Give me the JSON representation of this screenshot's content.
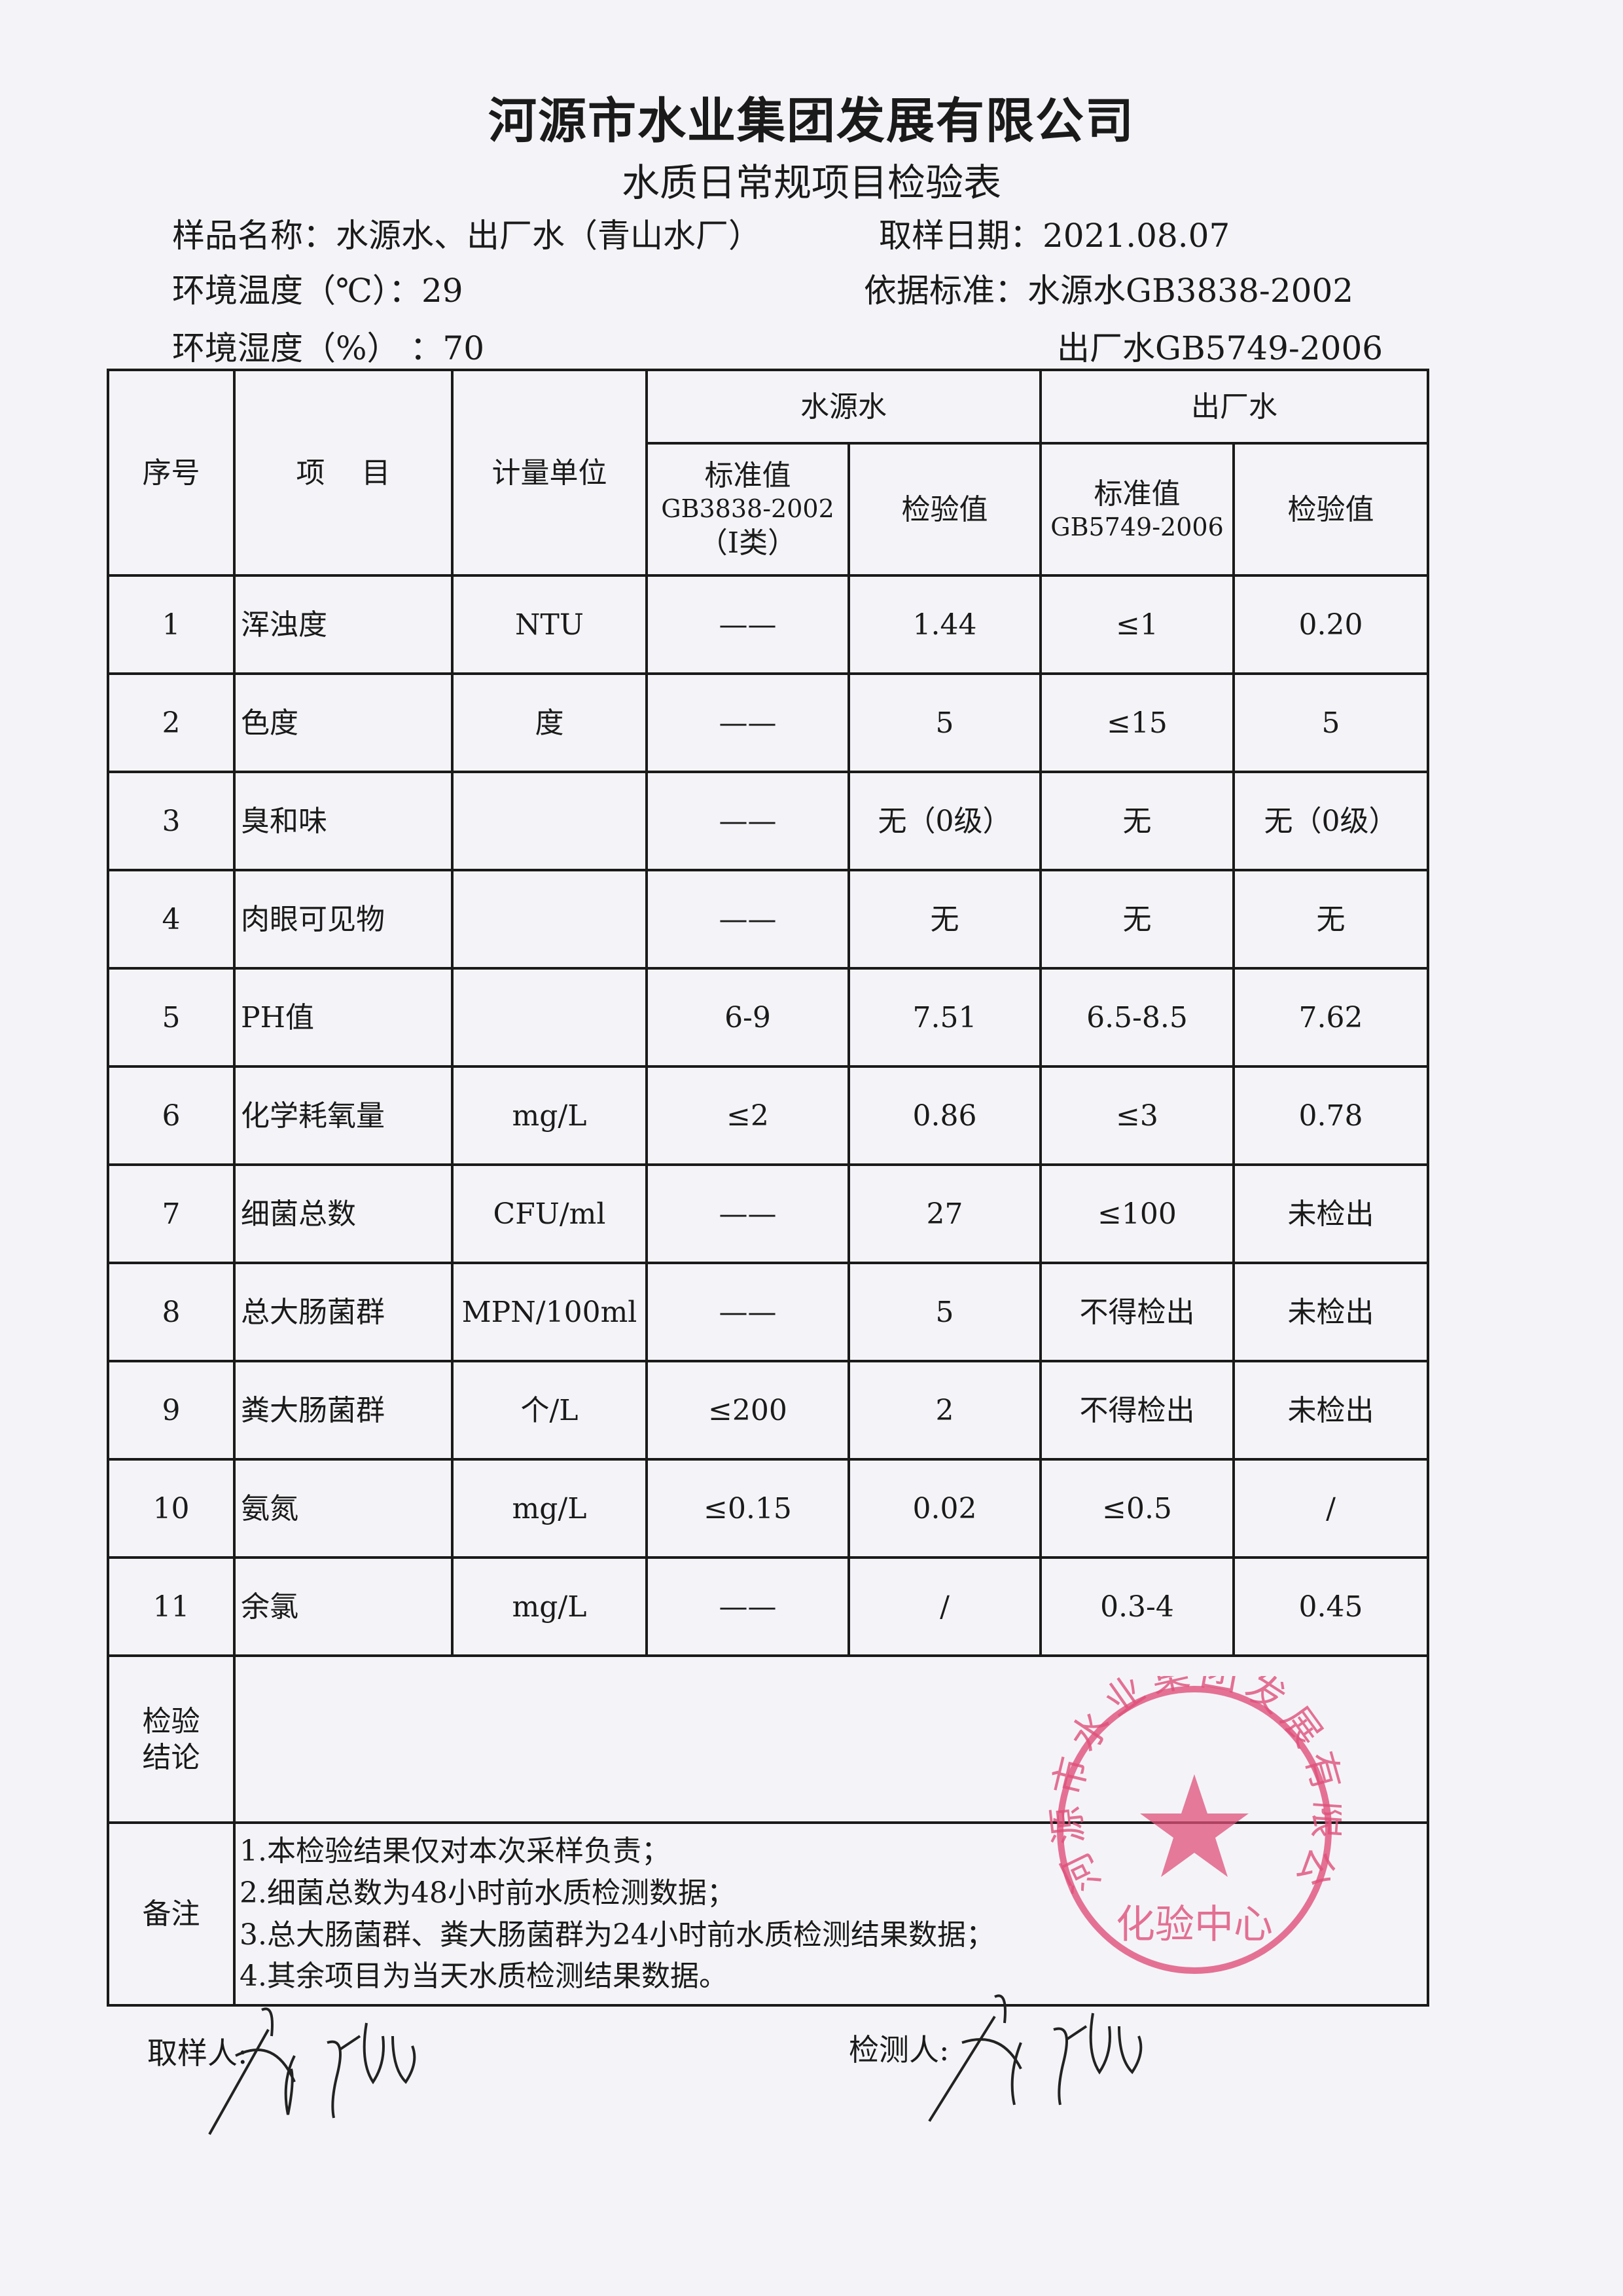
{
  "header": {
    "company": "河源市水业集团发展有限公司",
    "form_title": "水质日常规项目检验表",
    "sample_name_label": "样品名称：",
    "sample_name": "水源水、出厂水（青山水厂）",
    "sample_date_label": "取样日期：",
    "sample_date": "2021.08.07",
    "temp_label": "环境温度（℃）：",
    "temp": "29",
    "humidity_label": "环境湿度（%）  ：",
    "humidity": "70",
    "standard_label": "依据标准：",
    "standard_source": "水源水GB3838-2002",
    "standard_factory": "出厂水GB5749-2006"
  },
  "table": {
    "col_no": "序号",
    "col_item": "项    目",
    "col_unit": "计量单位",
    "group_source": "水源水",
    "group_factory": "出厂水",
    "source_std_line1": "标准值",
    "source_std_line2": "GB3838-2002",
    "source_std_line3": "（Ⅰ类）",
    "source_val": "检验值",
    "factory_std_line1": "标准值",
    "factory_std_line2": "GB5749-2006",
    "factory_val": "检验值",
    "rows": [
      {
        "no": "1",
        "item": "浑浊度",
        "unit": "NTU",
        "src_std": "——",
        "src_val": "1.44",
        "fac_std": "≤1",
        "fac_val": "0.20"
      },
      {
        "no": "2",
        "item": "色度",
        "unit": "度",
        "src_std": "——",
        "src_val": "5",
        "fac_std": "≤15",
        "fac_val": "5"
      },
      {
        "no": "3",
        "item": "臭和味",
        "unit": "",
        "src_std": "——",
        "src_val": "无（0级）",
        "fac_std": "无",
        "fac_val": "无（0级）"
      },
      {
        "no": "4",
        "item": "肉眼可见物",
        "unit": "",
        "src_std": "——",
        "src_val": "无",
        "fac_std": "无",
        "fac_val": "无"
      },
      {
        "no": "5",
        "item": "PH值",
        "unit": "",
        "src_std": "6-9",
        "src_val": "7.51",
        "fac_std": "6.5-8.5",
        "fac_val": "7.62"
      },
      {
        "no": "6",
        "item": "化学耗氧量",
        "unit": "mg/L",
        "src_std": "≤2",
        "src_val": "0.86",
        "fac_std": "≤3",
        "fac_val": "0.78"
      },
      {
        "no": "7",
        "item": "细菌总数",
        "unit": "CFU/ml",
        "src_std": "——",
        "src_val": "27",
        "fac_std": "≤100",
        "fac_val": "未检出"
      },
      {
        "no": "8",
        "item": "总大肠菌群",
        "unit": "MPN/100ml",
        "src_std": "——",
        "src_val": "5",
        "fac_std": "不得检出",
        "fac_val": "未检出"
      },
      {
        "no": "9",
        "item": "粪大肠菌群",
        "unit": "个/L",
        "src_std": "≤200",
        "src_val": "2",
        "fac_std": "不得检出",
        "fac_val": "未检出"
      },
      {
        "no": "10",
        "item": "氨氮",
        "unit": "mg/L",
        "src_std": "≤0.15",
        "src_val": "0.02",
        "fac_std": "≤0.5",
        "fac_val": "/"
      },
      {
        "no": "11",
        "item": "余氯",
        "unit": "mg/L",
        "src_std": "——",
        "src_val": "/",
        "fac_std": "0.3-4",
        "fac_val": "0.45"
      }
    ],
    "conclusion_label_1": "检验",
    "conclusion_label_2": "结论",
    "remarks_label": "备注",
    "remarks": [
      "1.本检验结果仅对本次采样负责；",
      "2.细菌总数为48小时前水质检测数据；",
      "3.总大肠菌群、粪大肠菌群为24小时前水质检测结果数据；",
      "4.其余项目为当天水质检测结果数据。"
    ]
  },
  "footer": {
    "sampler_label": "取样人:",
    "tester_label": "检测人:"
  },
  "stamp": {
    "ring_text": "河源市水业集团发展有限公司",
    "center_text": "化验中心",
    "color": "#e0507a"
  }
}
